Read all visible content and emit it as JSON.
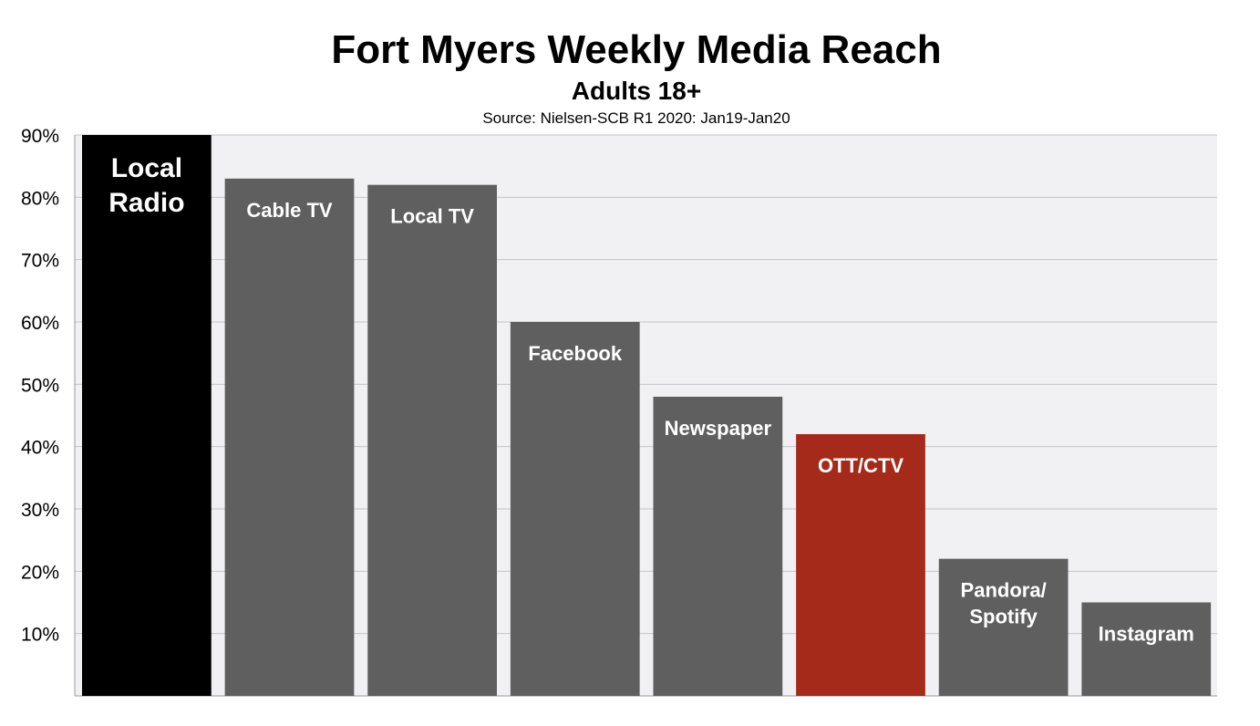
{
  "chart_data": {
    "type": "bar",
    "title": "Fort Myers Weekly Media Reach",
    "subtitle": "Adults 18+",
    "source": "Source: Nielsen-SCB R1 2020: Jan19-Jan20",
    "categories": [
      "Local Radio",
      "Cable TV",
      "Local TV",
      "Facebook",
      "Newspaper",
      "OTT/CTV",
      "Pandora/ Spotify",
      "Instagram"
    ],
    "bar_label_lines": [
      [
        "Local",
        "Radio"
      ],
      [
        "Cable TV"
      ],
      [
        "Local TV"
      ],
      [
        "Facebook"
      ],
      [
        "Newspaper"
      ],
      [
        "OTT/CTV"
      ],
      [
        "Pandora/",
        "Spotify"
      ],
      [
        "Instagram"
      ]
    ],
    "values": [
      90,
      83,
      82,
      60,
      48,
      42,
      22,
      15
    ],
    "colors": [
      "#000000",
      "#5f5f5f",
      "#5f5f5f",
      "#5f5f5f",
      "#5f5f5f",
      "#a62a19",
      "#5f5f5f",
      "#5f5f5f"
    ],
    "ylim": [
      0,
      90
    ],
    "yticks": [
      10,
      20,
      30,
      40,
      50,
      60,
      70,
      80,
      90
    ],
    "ytick_labels": [
      "10%",
      "20%",
      "30%",
      "40%",
      "50%",
      "60%",
      "70%",
      "80%",
      "90%"
    ],
    "xlabel": "",
    "ylabel": "",
    "grid": true,
    "plot_background": "#f1f1f4",
    "legend": "none"
  }
}
